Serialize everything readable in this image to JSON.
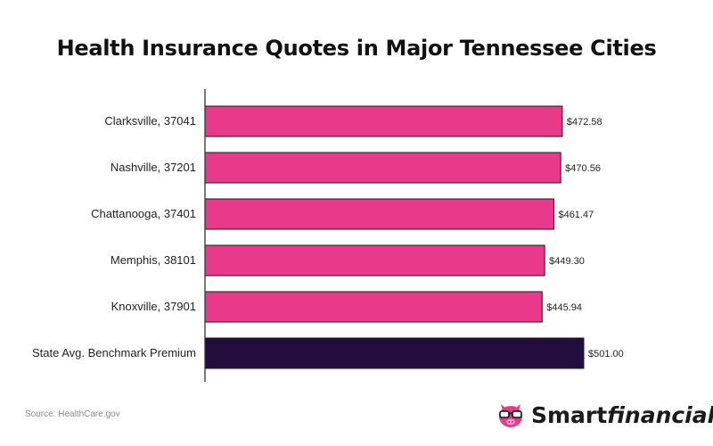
{
  "colors": {
    "city_bar": "#E8398A",
    "benchmark_bar": "#230D3F",
    "bar_outline": "#1a1a1a",
    "axis": "#333333",
    "text": "#222222",
    "logo_pink": "#E8398A"
  },
  "chart_data": {
    "type": "bar",
    "orientation": "horizontal",
    "title": "Health Insurance Quotes in Major Tennessee Cities",
    "xlabel": "",
    "ylabel": "",
    "xlim": [
      0,
      510
    ],
    "grid": false,
    "categories": [
      "Clarksville, 37041",
      "Nashville, 37201",
      "Chattanooga, 37401",
      "Memphis, 38101",
      "Knoxville, 37901",
      "State Avg. Benchmark Premium"
    ],
    "values": [
      472.58,
      470.56,
      461.47,
      449.3,
      445.94,
      501.0
    ],
    "value_labels": [
      "$472.58",
      "$470.56",
      "$461.47",
      "$449.30",
      "$445.94",
      "$501.00"
    ],
    "bar_colors": [
      "#E8398A",
      "#E8398A",
      "#E8398A",
      "#E8398A",
      "#E8398A",
      "#230D3F"
    ]
  },
  "source": {
    "text": "Source: HealthCare.gov"
  },
  "logo": {
    "part1": "Smart",
    "part2": "financial",
    "icon": "pig-with-glasses-icon"
  }
}
